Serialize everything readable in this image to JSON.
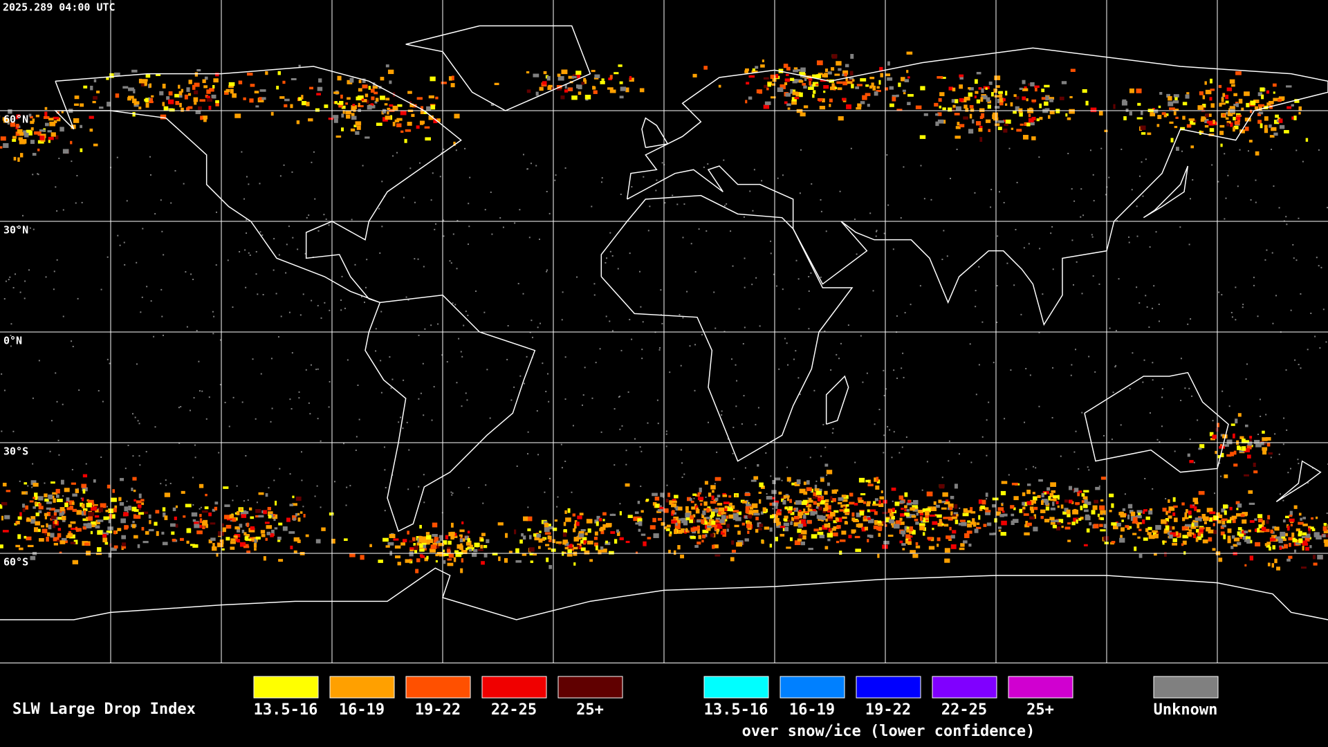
{
  "header": {
    "timestamp": "2025.289 04:00 UTC"
  },
  "latitude_labels": [
    "60°N",
    "30°N",
    "0°N",
    "30°S",
    "60°S"
  ],
  "legend": {
    "title": "SLW Large Drop Index",
    "groups": [
      {
        "items": [
          {
            "label": "13.5-16",
            "color": "#ffff00"
          },
          {
            "label": "16-19",
            "color": "#ffa000"
          },
          {
            "label": "19-22",
            "color": "#ff5000"
          },
          {
            "label": "22-25",
            "color": "#f00000"
          },
          {
            "label": "25+",
            "color": "#600000"
          }
        ]
      },
      {
        "items": [
          {
            "label": "13.5-16",
            "color": "#00ffff"
          },
          {
            "label": "16-19",
            "color": "#0080ff"
          },
          {
            "label": "19-22",
            "color": "#0000ff"
          },
          {
            "label": "22-25",
            "color": "#8000ff"
          },
          {
            "label": "25+",
            "color": "#d000d0"
          }
        ],
        "caption": "over snow/ice (lower confidence)"
      },
      {
        "items": [
          {
            "label": "Unknown",
            "color": "#808080"
          }
        ]
      }
    ]
  }
}
